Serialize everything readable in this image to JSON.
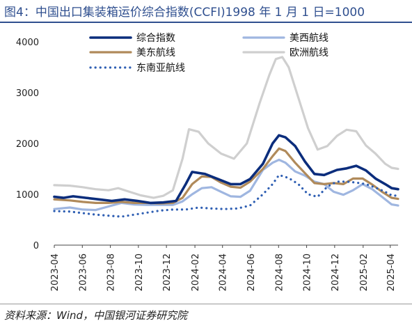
{
  "title": "图4：中国出口集装箱运价综合指数(CCFI)1998 年 1 月 1 日=1000",
  "source": "资料来源：Wind，中国银河证券研究院",
  "colors": {
    "title": "#2f4f8f",
    "composite": "#0b2d7c",
    "uswest": "#9fb6e0",
    "useast": "#b08a5a",
    "europe": "#cfcfcf",
    "seasia": "#2f5fb3"
  },
  "chart_data": {
    "type": "line",
    "title": "中国出口集装箱运价综合指数(CCFI)1998 年 1 月 1 日=1000",
    "ylim": [
      0,
      4000
    ],
    "yticks": [
      0,
      1000,
      2000,
      3000,
      4000
    ],
    "x_range": [
      "2023-04",
      "2025-04"
    ],
    "x_ticks": [
      "2023-04",
      "2023-06",
      "2023-08",
      "2023-10",
      "2023-12",
      "2024-02",
      "2024-04",
      "2024-06",
      "2024-08",
      "2024-10",
      "2024-12",
      "2025-02",
      "2025-04"
    ],
    "grid": false,
    "legend": "top",
    "series": [
      {
        "name": "综合指数",
        "key": "composite",
        "style": "solid-thick",
        "points": [
          [
            "2023-04-01",
            950
          ],
          [
            "2023-04-21",
            930
          ],
          [
            "2023-05-12",
            960
          ],
          [
            "2023-06-09",
            930
          ],
          [
            "2023-07-07",
            900
          ],
          [
            "2023-08-04",
            870
          ],
          [
            "2023-09-01",
            900
          ],
          [
            "2023-09-29",
            870
          ],
          [
            "2023-10-27",
            830
          ],
          [
            "2023-11-24",
            840
          ],
          [
            "2023-12-22",
            870
          ],
          [
            "2024-01-12",
            1200
          ],
          [
            "2024-01-26",
            1440
          ],
          [
            "2024-02-23",
            1400
          ],
          [
            "2024-03-22",
            1300
          ],
          [
            "2024-04-19",
            1200
          ],
          [
            "2024-05-10",
            1200
          ],
          [
            "2024-05-31",
            1300
          ],
          [
            "2024-06-28",
            1600
          ],
          [
            "2024-07-19",
            2000
          ],
          [
            "2024-08-02",
            2160
          ],
          [
            "2024-08-16",
            2120
          ],
          [
            "2024-09-06",
            1950
          ],
          [
            "2024-09-27",
            1650
          ],
          [
            "2024-10-18",
            1400
          ],
          [
            "2024-11-08",
            1380
          ],
          [
            "2024-12-06",
            1480
          ],
          [
            "2024-12-27",
            1510
          ],
          [
            "2025-01-17",
            1560
          ],
          [
            "2025-02-07",
            1470
          ],
          [
            "2025-02-28",
            1310
          ],
          [
            "2025-03-21",
            1200
          ],
          [
            "2025-04-04",
            1120
          ],
          [
            "2025-04-18",
            1100
          ]
        ]
      },
      {
        "name": "美西航线",
        "key": "uswest",
        "style": "solid",
        "points": [
          [
            "2023-04-01",
            710
          ],
          [
            "2023-05-05",
            740
          ],
          [
            "2023-06-02",
            700
          ],
          [
            "2023-06-30",
            690
          ],
          [
            "2023-07-28",
            760
          ],
          [
            "2023-08-25",
            830
          ],
          [
            "2023-09-22",
            800
          ],
          [
            "2023-10-20",
            790
          ],
          [
            "2023-11-17",
            790
          ],
          [
            "2023-12-15",
            790
          ],
          [
            "2024-01-05",
            860
          ],
          [
            "2024-01-26",
            1000
          ],
          [
            "2024-02-16",
            1120
          ],
          [
            "2024-03-08",
            1140
          ],
          [
            "2024-03-29",
            1050
          ],
          [
            "2024-04-19",
            960
          ],
          [
            "2024-05-10",
            950
          ],
          [
            "2024-05-31",
            1070
          ],
          [
            "2024-06-28",
            1480
          ],
          [
            "2024-07-19",
            1620
          ],
          [
            "2024-08-02",
            1680
          ],
          [
            "2024-08-16",
            1620
          ],
          [
            "2024-09-06",
            1450
          ],
          [
            "2024-09-27",
            1370
          ],
          [
            "2024-10-18",
            1250
          ],
          [
            "2024-11-08",
            1200
          ],
          [
            "2024-11-29",
            1050
          ],
          [
            "2024-12-20",
            990
          ],
          [
            "2025-01-10",
            1080
          ],
          [
            "2025-01-31",
            1200
          ],
          [
            "2025-02-21",
            1100
          ],
          [
            "2025-03-14",
            950
          ],
          [
            "2025-04-04",
            800
          ],
          [
            "2025-04-18",
            780
          ]
        ]
      },
      {
        "name": "美东航线",
        "key": "useast",
        "style": "solid",
        "points": [
          [
            "2023-04-01",
            900
          ],
          [
            "2023-05-05",
            880
          ],
          [
            "2023-06-02",
            850
          ],
          [
            "2023-06-30",
            830
          ],
          [
            "2023-07-28",
            830
          ],
          [
            "2023-08-25",
            850
          ],
          [
            "2023-09-22",
            830
          ],
          [
            "2023-10-20",
            830
          ],
          [
            "2023-11-17",
            820
          ],
          [
            "2023-12-15",
            830
          ],
          [
            "2024-01-05",
            930
          ],
          [
            "2024-01-26",
            1200
          ],
          [
            "2024-02-16",
            1350
          ],
          [
            "2024-03-08",
            1340
          ],
          [
            "2024-03-29",
            1230
          ],
          [
            "2024-04-19",
            1150
          ],
          [
            "2024-05-10",
            1130
          ],
          [
            "2024-05-31",
            1250
          ],
          [
            "2024-06-28",
            1500
          ],
          [
            "2024-07-19",
            1750
          ],
          [
            "2024-08-02",
            1900
          ],
          [
            "2024-08-16",
            1850
          ],
          [
            "2024-09-06",
            1620
          ],
          [
            "2024-09-27",
            1420
          ],
          [
            "2024-10-18",
            1220
          ],
          [
            "2024-11-08",
            1200
          ],
          [
            "2024-11-29",
            1220
          ],
          [
            "2024-12-20",
            1200
          ],
          [
            "2025-01-10",
            1310
          ],
          [
            "2025-01-31",
            1310
          ],
          [
            "2025-02-21",
            1190
          ],
          [
            "2025-03-14",
            1050
          ],
          [
            "2025-04-04",
            930
          ],
          [
            "2025-04-18",
            910
          ]
        ]
      },
      {
        "name": "欧洲航线",
        "key": "europe",
        "style": "solid",
        "points": [
          [
            "2023-04-01",
            1180
          ],
          [
            "2023-05-05",
            1170
          ],
          [
            "2023-06-02",
            1140
          ],
          [
            "2023-06-30",
            1100
          ],
          [
            "2023-07-28",
            1080
          ],
          [
            "2023-08-18",
            1120
          ],
          [
            "2023-09-08",
            1060
          ],
          [
            "2023-10-06",
            980
          ],
          [
            "2023-11-03",
            930
          ],
          [
            "2023-11-24",
            970
          ],
          [
            "2023-12-15",
            1080
          ],
          [
            "2024-01-05",
            1700
          ],
          [
            "2024-01-19",
            2280
          ],
          [
            "2024-02-09",
            2230
          ],
          [
            "2024-03-01",
            2000
          ],
          [
            "2024-03-29",
            1800
          ],
          [
            "2024-04-26",
            1700
          ],
          [
            "2024-05-24",
            2000
          ],
          [
            "2024-06-21",
            2800
          ],
          [
            "2024-07-12",
            3350
          ],
          [
            "2024-07-26",
            3660
          ],
          [
            "2024-08-09",
            3700
          ],
          [
            "2024-08-23",
            3500
          ],
          [
            "2024-09-13",
            2900
          ],
          [
            "2024-10-04",
            2300
          ],
          [
            "2024-10-25",
            1880
          ],
          [
            "2024-11-15",
            1950
          ],
          [
            "2024-12-06",
            2150
          ],
          [
            "2024-12-27",
            2270
          ],
          [
            "2025-01-17",
            2240
          ],
          [
            "2025-02-07",
            1960
          ],
          [
            "2025-02-28",
            1800
          ],
          [
            "2025-03-21",
            1600
          ],
          [
            "2025-04-04",
            1520
          ],
          [
            "2025-04-18",
            1500
          ]
        ]
      },
      {
        "name": "东南亚航线",
        "key": "seasia",
        "style": "dotted",
        "points": [
          [
            "2023-04-01",
            670
          ],
          [
            "2023-05-05",
            660
          ],
          [
            "2023-06-02",
            630
          ],
          [
            "2023-06-30",
            600
          ],
          [
            "2023-07-28",
            580
          ],
          [
            "2023-08-25",
            560
          ],
          [
            "2023-09-22",
            600
          ],
          [
            "2023-10-20",
            640
          ],
          [
            "2023-11-17",
            680
          ],
          [
            "2023-12-15",
            700
          ],
          [
            "2024-01-12",
            700
          ],
          [
            "2024-02-09",
            740
          ],
          [
            "2024-03-08",
            720
          ],
          [
            "2024-04-05",
            710
          ],
          [
            "2024-05-03",
            720
          ],
          [
            "2024-05-31",
            780
          ],
          [
            "2024-06-28",
            1000
          ],
          [
            "2024-07-19",
            1200
          ],
          [
            "2024-08-02",
            1380
          ],
          [
            "2024-08-23",
            1320
          ],
          [
            "2024-09-13",
            1200
          ],
          [
            "2024-10-04",
            1000
          ],
          [
            "2024-10-25",
            950
          ],
          [
            "2024-11-15",
            1150
          ],
          [
            "2024-12-06",
            1250
          ],
          [
            "2024-12-27",
            1250
          ],
          [
            "2025-01-17",
            1230
          ],
          [
            "2025-02-07",
            1200
          ],
          [
            "2025-02-28",
            1130
          ],
          [
            "2025-03-21",
            1050
          ],
          [
            "2025-04-04",
            980
          ],
          [
            "2025-04-18",
            970
          ]
        ]
      }
    ]
  }
}
